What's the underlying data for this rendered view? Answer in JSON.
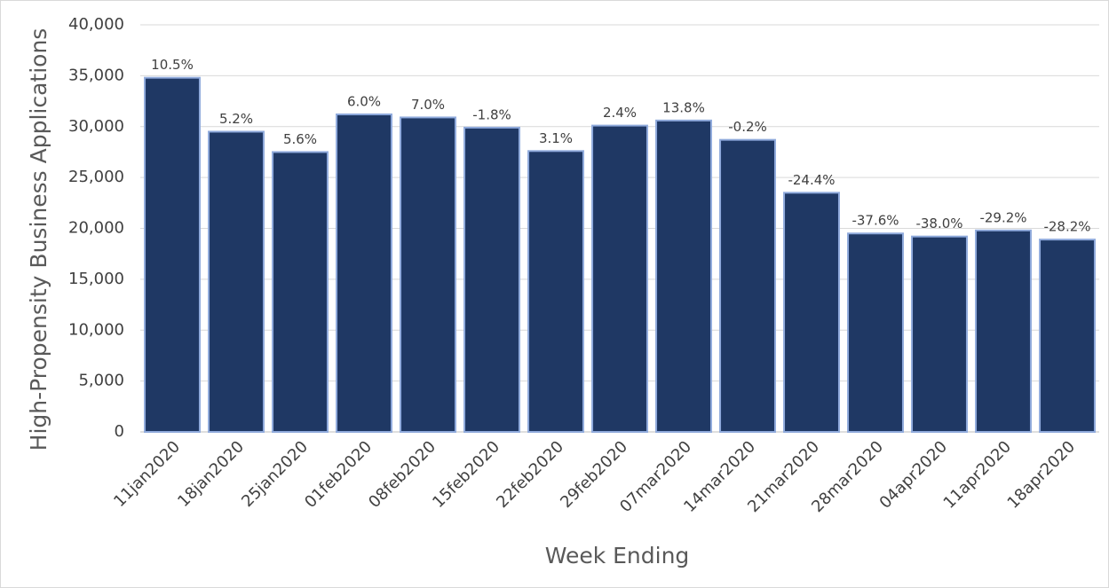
{
  "chart_data": {
    "type": "bar",
    "categories": [
      "11jan2020",
      "18jan2020",
      "25jan2020",
      "01feb2020",
      "08feb2020",
      "15feb2020",
      "22feb2020",
      "29feb2020",
      "07mar2020",
      "14mar2020",
      "21mar2020",
      "28mar2020",
      "04apr2020",
      "11apr2020",
      "18apr2020"
    ],
    "values": [
      34800,
      29500,
      27500,
      31200,
      30900,
      29900,
      27600,
      30100,
      30600,
      28700,
      23500,
      19500,
      19200,
      19800,
      18900
    ],
    "data_labels": [
      "10.5%",
      "5.2%",
      "5.6%",
      "6.0%",
      "7.0%",
      "-1.8%",
      "3.1%",
      "2.4%",
      "13.8%",
      "-0.2%",
      "-24.4%",
      "-37.6%",
      "-38.0%",
      "-29.2%",
      "-28.2%"
    ],
    "color": "#1f3864",
    "x_label": "Week Ending",
    "y_label": "High-Propensity Business Applications",
    "ylim": [
      0,
      40000
    ],
    "yticks": [
      0,
      {
        "value": 5000,
        "label": "5,000"
      },
      {
        "value": 10000,
        "label": "10,000"
      },
      {
        "value": 15000,
        "label": "15,000"
      },
      {
        "value": 20000,
        "label": "20,000"
      },
      {
        "value": 25000,
        "label": "25,000"
      },
      {
        "value": 30000,
        "label": "30,000"
      },
      {
        "value": 35000,
        "label": "35,000"
      },
      {
        "value": 40000,
        "label": "40,000"
      }
    ],
    "grid": true
  }
}
